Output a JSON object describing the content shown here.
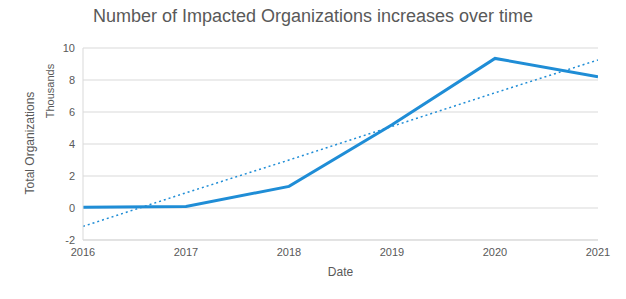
{
  "chart_data": {
    "type": "line",
    "title": "Number of Impacted Organizations increases over time",
    "x_label": "Date",
    "y_label": "Total Organizations",
    "annotations": [
      "Thousands"
    ],
    "x": [
      2016,
      2017,
      2018,
      2019,
      2020,
      2021
    ],
    "series": [
      {
        "color": "#1f8dd6",
        "line_style": "solid",
        "values": [
          0.05,
          0.1,
          1.35,
          5.2,
          9.35,
          8.2
        ]
      },
      {
        "color": "#1f8dd6",
        "line_style": "dotted",
        "values": [
          -1.15,
          0.95,
          3.0,
          5.1,
          7.2,
          9.25
        ]
      }
    ],
    "xlim": [
      2016,
      2021
    ],
    "xticks": [
      2016,
      2017,
      2018,
      2019,
      2020,
      2021
    ],
    "ylim": [
      -2,
      10
    ],
    "yticks": [
      -2,
      0,
      2,
      4,
      6,
      8,
      10
    ],
    "grid": true
  }
}
